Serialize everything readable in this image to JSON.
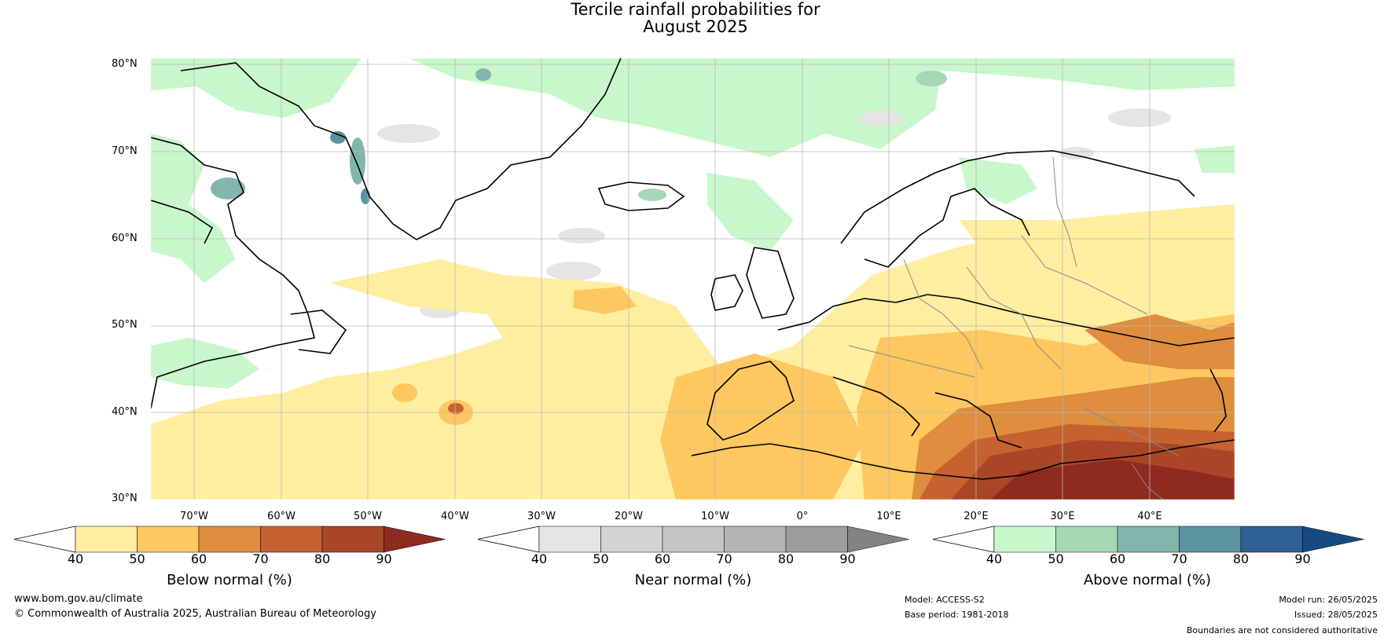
{
  "title": {
    "line1": "Tercile rainfall probabilities for",
    "line2": "August 2025"
  },
  "map": {
    "latitude_labels": [
      "80°N",
      "70°N",
      "60°N",
      "50°N",
      "40°N",
      "30°N"
    ],
    "longitude_labels": [
      "70°W",
      "60°W",
      "50°W",
      "40°W",
      "30°W",
      "20°W",
      "10°W",
      "0°",
      "10°E",
      "20°E",
      "30°E",
      "40°E"
    ],
    "region": "Europe / North Atlantic"
  },
  "colorbars": [
    {
      "title": "Below normal (%)",
      "ticks": [
        "40",
        "50",
        "60",
        "70",
        "80",
        "90"
      ],
      "colors": [
        "#ffeda0",
        "#fec760",
        "#de8e3e",
        "#c6622f",
        "#a94628",
        "#8f2a1f"
      ]
    },
    {
      "title": "Near normal (%)",
      "ticks": [
        "40",
        "50",
        "60",
        "70",
        "80",
        "90"
      ],
      "colors": [
        "#e5e5e5",
        "#d3d3d3",
        "#c5c5c5",
        "#b5b5b5",
        "#9d9d9d",
        "#838383"
      ]
    },
    {
      "title": "Above normal (%)",
      "ticks": [
        "40",
        "50",
        "60",
        "70",
        "80",
        "90"
      ],
      "colors": [
        "#c8f7cb",
        "#a7d8b6",
        "#82b6ad",
        "#5b93a0",
        "#2f6094",
        "#174a80"
      ]
    }
  ],
  "footer": {
    "website": "www.bom.gov.au/climate",
    "copyright": "© Commonwealth of Australia 2025, Australian Bureau of Meteorology",
    "model": "Model: ACCESS-S2",
    "base_period": "Base period: 1981-2018",
    "model_run": "Model run: 26/05/2025",
    "issued": "Issued: 28/05/2025",
    "disclaimer": "Boundaries are not considered authoritative"
  }
}
